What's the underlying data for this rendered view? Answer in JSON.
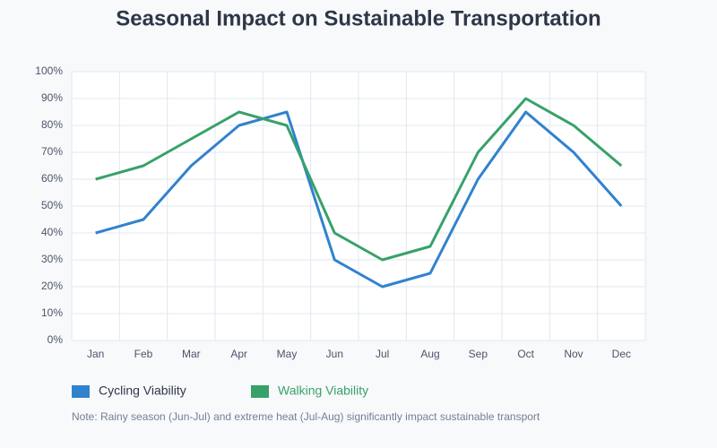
{
  "chart_data": {
    "type": "line",
    "title": "Seasonal Impact on Sustainable Transportation",
    "categories": [
      "Jan",
      "Feb",
      "Mar",
      "Apr",
      "May",
      "Jun",
      "Jul",
      "Aug",
      "Sep",
      "Oct",
      "Nov",
      "Dec"
    ],
    "series": [
      {
        "name": "Cycling Viability",
        "color": "#3182ce",
        "values": [
          40,
          45,
          65,
          80,
          85,
          30,
          20,
          25,
          60,
          85,
          70,
          50
        ]
      },
      {
        "name": "Walking Viability",
        "color": "#38a169",
        "values": [
          60,
          65,
          75,
          85,
          80,
          40,
          30,
          35,
          70,
          90,
          80,
          65
        ]
      }
    ],
    "ylim": [
      0,
      100
    ],
    "yticks": [
      {
        "value": 0,
        "label": "0%"
      },
      {
        "value": 10,
        "label": "10%"
      },
      {
        "value": 20,
        "label": "20%"
      },
      {
        "value": 30,
        "label": "30%"
      },
      {
        "value": 40,
        "label": "40%"
      },
      {
        "value": 50,
        "label": "50%"
      },
      {
        "value": 60,
        "label": "60%"
      },
      {
        "value": 70,
        "label": "70%"
      },
      {
        "value": 80,
        "label": "80%"
      },
      {
        "value": 90,
        "label": "90%"
      },
      {
        "value": 100,
        "label": "100%"
      }
    ],
    "grid": true,
    "note": "Note: Rainy season (Jun-Jul) and extreme heat (Jul-Aug) significantly impact sustainable transport"
  }
}
